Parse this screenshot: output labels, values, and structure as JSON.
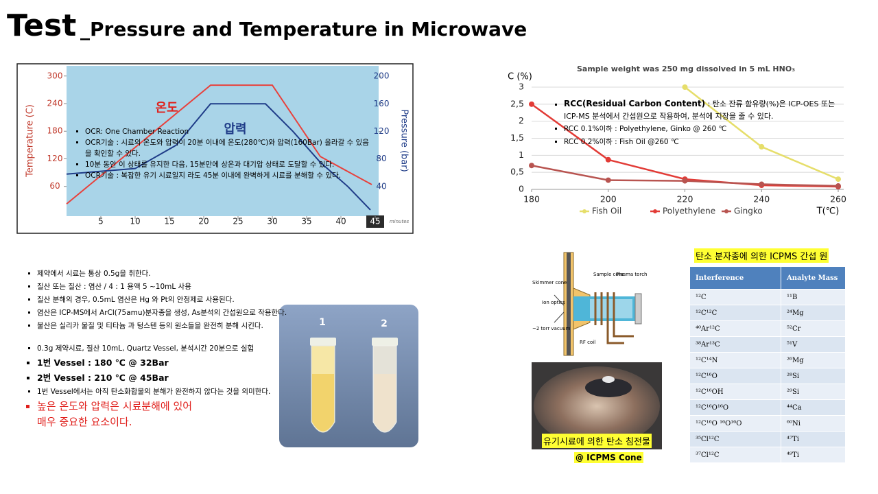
{
  "title": {
    "main": "Test",
    "rest": "_Pressure and Temperature in  Microwave"
  },
  "chart_data": [
    {
      "type": "line",
      "ylabel": "Temperature (C)",
      "y2label": "Pressure (bar)",
      "xunit": "minutes",
      "xlim": [
        0,
        45.5
      ],
      "xticks": [
        5,
        10,
        15,
        20,
        25,
        30,
        35,
        40,
        45
      ],
      "highlight_last_xtick": true,
      "ylim": [
        -4.5,
        322
      ],
      "yticks": [
        60,
        120,
        180,
        240,
        300
      ],
      "y2lim": [
        -3,
        215
      ],
      "y2ticks": [
        40,
        80,
        120,
        160,
        200
      ],
      "grid": false,
      "series": [
        {
          "name": "온도",
          "color": "#e8413c",
          "x": [
            0,
            21,
            30,
            37,
            44.5
          ],
          "values": [
            22,
            280,
            280,
            125,
            64
          ]
        },
        {
          "name": "압력",
          "color": "#1f3c88",
          "axis": "y2",
          "x": [
            0,
            10,
            16,
            21,
            29,
            33,
            37,
            41,
            44.3
          ],
          "values": [
            58,
            66,
            100,
            160,
            160,
            120,
            75,
            40,
            6
          ]
        }
      ],
      "bullets": [
        "OCR: One Chamber Reaction",
        "OCR기술 : 시료의 온도와 압력이 20분 이내에 온도(280℃)와 압력(160Bar) 올라갈 수 있음을 확인할 수 있다.",
        "10분 동안 이 상태를 유지한 다음,  15분만에 상온과 대기압 상태로 도달할 수 있다.",
        "OCR기술 : 복잡한 유기 시료일지 라도 45분 이내에 완벽하게 시료를 분해할 수 있다."
      ]
    },
    {
      "type": "line",
      "title": "Sample weight was 250 mg dissolved in 5 mL HNO₃",
      "ylabel": "C (%)",
      "xlabel": "T(℃)",
      "xlim": [
        180,
        260
      ],
      "xticks": [
        180,
        200,
        220,
        240,
        260
      ],
      "ylim": [
        0,
        3
      ],
      "yticks": [
        0,
        {
          "value": 0.5,
          "label": "0,5"
        },
        1,
        {
          "value": 1.5,
          "label": "1,5"
        },
        2,
        {
          "value": 2.5,
          "label": "2,5"
        },
        3
      ],
      "grid": true,
      "markers": true,
      "legend": "bottom",
      "series": [
        {
          "name": "Fish Oil",
          "color": "#e6de6a",
          "x": [
            220,
            240,
            260
          ],
          "values": [
            3,
            1.25,
            0.3
          ]
        },
        {
          "name": "Polyethylene",
          "color": "#e23b36",
          "x": [
            180,
            200,
            220,
            240,
            260
          ],
          "values": [
            2.5,
            0.87,
            0.3,
            0.12,
            0.08
          ]
        },
        {
          "name": "Gingko",
          "color": "#b85450",
          "x": [
            180,
            200,
            220,
            240,
            260
          ],
          "values": [
            0.7,
            0.27,
            0.25,
            0.15,
            0.1
          ]
        }
      ],
      "bullets_lead": {
        "bold": "RCC(Residual Carbon Content)",
        "text": " : 탄소 잔류 함유량(%)은 ICP-OES 또는 ICP-MS 분석에서 간섭원으로 작용하여, 분석에 지장을 줄 수 있다."
      },
      "bullets": [
        "RCC 0.1%이하 : Polyethylene,  Ginko @ 260 ℃",
        "RCC 0.2%이하 : Fish Oil @260 ℃"
      ]
    }
  ],
  "notes": {
    "list": [
      "제약에서 시료는 통상 0.5g을 취한다.",
      "질산 또는 질산 : 염산 / 4 : 1 용액 5 ~10mL  사용",
      "질산 분해의 경우, 0.5mL 염산은 Hg 와 Pt의 안정제로 사용된다.",
      "염산은 ICP-MS에서 ArCl(75amu)분자종을 생성, As분석의 간섭원으로 작용한다.",
      "불산은 실리카 물질 및 티타늄 과 텅스텐 등의 원소들을 완전히 분해 시킨다."
    ],
    "experiment": "0.3g 제약시료, 질산 10mL, Quartz Vessel,  분석시간 20분으로 실험",
    "vessel1": "1번 Vessel : 180 ℃ @ 32Bar",
    "vessel2": "2번 Vessel : 210 ℃ @ 45Bar",
    "meaning": "1번 Vessel에서는 아직 탄소화합물의 분해가 완전하지 않다는 것을 의미한다.",
    "conclusion": [
      "높은 온도와 압력은 시료분해에 있어",
      "매우 중요한 요소이다."
    ]
  },
  "photo": {
    "tube1": "1",
    "tube2": "2"
  },
  "diagram": {
    "skimmer": "Skimmer cone",
    "ion": "Ion optics",
    "vacuum": "~2 torr vacuum",
    "sample": "Sample cone",
    "torch": "Plasma torch",
    "coil": "RF coil"
  },
  "cone_caption": [
    "유기시료에 의한 탄소 침전물",
    "@ ICPMS Cone"
  ],
  "table": {
    "title": "탄소 분자종에 의한 ICPMS 간섭 원",
    "header": [
      "Interference",
      "Analyte Mass"
    ],
    "rows": [
      [
        "¹²C",
        "¹¹B"
      ],
      [
        "¹²C¹²C",
        "²⁴Mg"
      ],
      [
        "⁴⁰Ar¹²C",
        "⁵²Cr"
      ],
      [
        "³⁸Ar¹³C",
        "⁵¹V"
      ],
      [
        "¹²C¹⁴N",
        "²⁶Mg"
      ],
      [
        "¹²C¹⁶O",
        "²⁸Si"
      ],
      [
        "¹²C¹⁶OH",
        "²⁹Si"
      ],
      [
        "¹²C¹⁶O¹⁶O",
        "⁴⁴Ca"
      ],
      [
        "¹²C¹⁶O ¹⁶O¹⁶O",
        "⁶⁰Ni"
      ],
      [
        "³⁵Cl¹²C",
        "⁴⁷Ti"
      ],
      [
        "³⁷Cl¹²C",
        "⁴⁹Ti"
      ]
    ]
  }
}
